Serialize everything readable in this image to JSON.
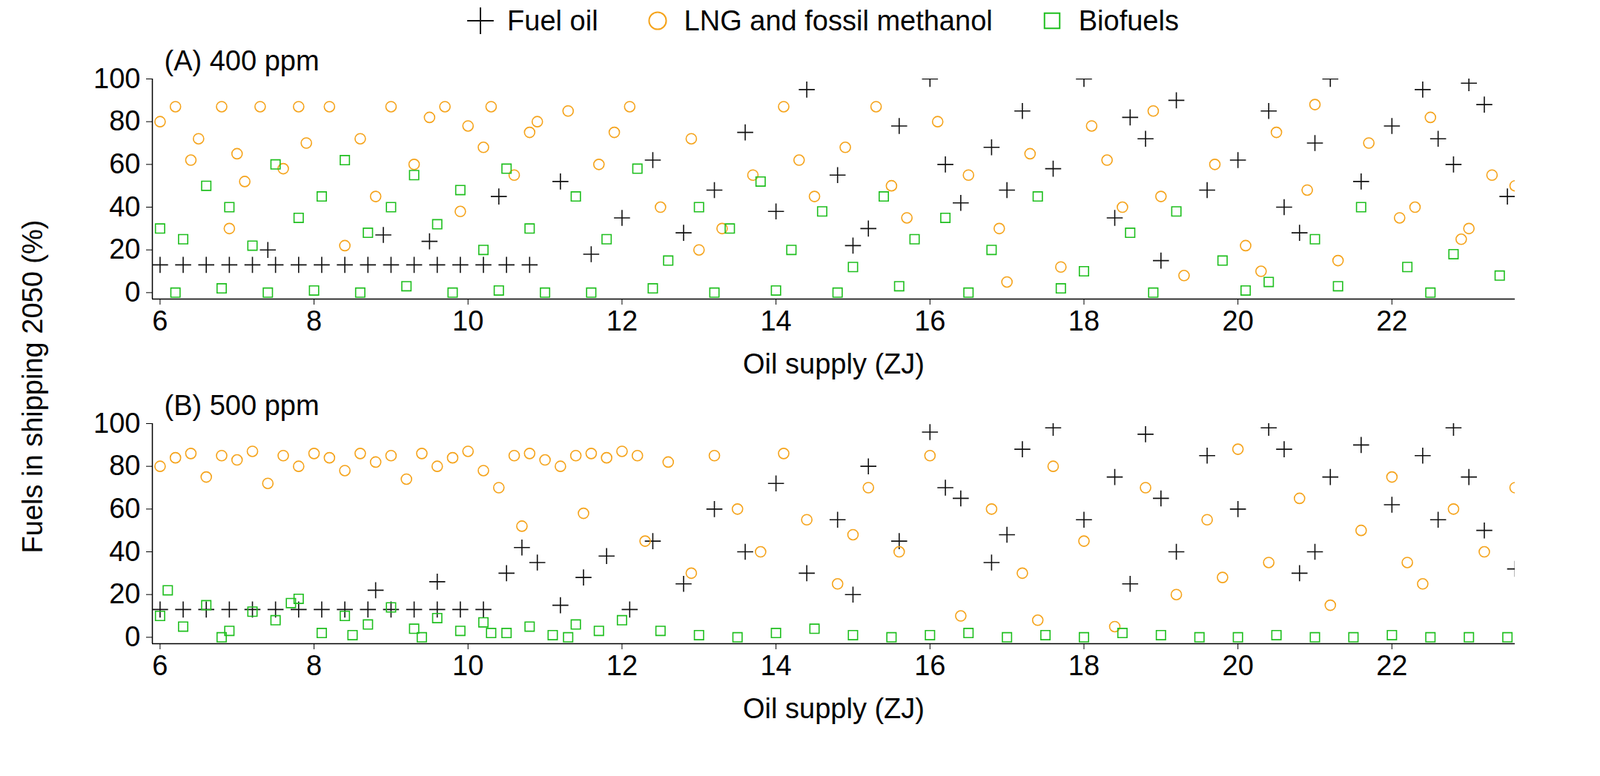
{
  "chart_data": [
    {
      "type": "scatter",
      "title": "(A) 400 ppm",
      "x_label": "Oil supply (ZJ)",
      "y_label": "Fuels in shipping 2050 (%)",
      "xlim": [
        5.9,
        23.6
      ],
      "xticks": [
        6,
        8,
        10,
        12,
        14,
        16,
        18,
        20,
        22
      ],
      "ylim": [
        -3,
        100
      ],
      "yticks": [
        0,
        20,
        40,
        60,
        80,
        100
      ],
      "legend": "top",
      "series": [
        {
          "name": "Fuel oil",
          "color": "#111111",
          "marker": "plus",
          "x": [
            6.0,
            6.3,
            6.6,
            6.9,
            7.2,
            7.5,
            7.8,
            8.1,
            8.4,
            8.7,
            9.0,
            9.3,
            9.6,
            9.9,
            10.2,
            10.5,
            10.8,
            7.4,
            8.9,
            9.5,
            10.4,
            11.2,
            11.6,
            12.0,
            12.4,
            12.8,
            13.2,
            13.6,
            14.0,
            14.4,
            14.8,
            15.2,
            15.6,
            16.0,
            16.4,
            16.8,
            17.2,
            17.6,
            18.0,
            18.4,
            18.8,
            19.2,
            19.6,
            20.0,
            20.4,
            20.8,
            21.2,
            21.6,
            22.0,
            22.4,
            22.8,
            23.2,
            23.5,
            15.0,
            17.0,
            19.0,
            21.0,
            23.0,
            16.2,
            18.6,
            20.6,
            22.6
          ],
          "values": [
            13,
            13,
            13,
            13,
            13,
            13,
            13,
            13,
            13,
            13,
            13,
            13,
            13,
            13,
            13,
            13,
            13,
            20,
            27,
            24,
            45,
            52,
            18,
            35,
            62,
            28,
            48,
            75,
            38,
            95,
            55,
            30,
            78,
            100,
            42,
            68,
            85,
            58,
            100,
            35,
            72,
            90,
            48,
            62,
            85,
            28,
            100,
            52,
            78,
            95,
            60,
            88,
            45,
            22,
            48,
            15,
            70,
            98,
            60,
            82,
            40,
            72
          ]
        },
        {
          "name": "LNG and fossil methanol",
          "color": "#f5a31a",
          "marker": "circle",
          "x": [
            6.0,
            6.2,
            6.5,
            6.8,
            7.0,
            7.3,
            7.6,
            7.8,
            8.2,
            8.6,
            9.0,
            9.3,
            9.7,
            10.0,
            10.3,
            10.6,
            10.9,
            6.4,
            7.1,
            7.9,
            8.8,
            9.5,
            10.2,
            10.8,
            6.9,
            8.4,
            9.9,
            11.3,
            11.7,
            12.1,
            12.5,
            12.9,
            13.3,
            13.7,
            14.1,
            14.5,
            14.9,
            15.3,
            15.7,
            11.9,
            13.0,
            14.3,
            15.5,
            16.1,
            16.5,
            16.9,
            17.3,
            17.7,
            18.1,
            18.5,
            18.9,
            19.3,
            19.7,
            20.1,
            20.5,
            20.9,
            21.3,
            21.7,
            22.1,
            22.5,
            22.9,
            23.3,
            23.6,
            17.0,
            19.0,
            21.0,
            23.0,
            18.3,
            20.3,
            22.3
          ],
          "values": [
            80,
            87,
            72,
            87,
            65,
            87,
            58,
            87,
            87,
            72,
            87,
            60,
            87,
            78,
            87,
            55,
            80,
            62,
            52,
            70,
            45,
            82,
            68,
            75,
            30,
            22,
            38,
            85,
            60,
            87,
            40,
            72,
            30,
            55,
            87,
            45,
            68,
            87,
            35,
            75,
            20,
            62,
            50,
            80,
            55,
            30,
            65,
            12,
            78,
            40,
            85,
            8,
            60,
            22,
            75,
            48,
            15,
            70,
            35,
            82,
            25,
            55,
            50,
            5,
            45,
            88,
            30,
            62,
            10,
            40
          ]
        },
        {
          "name": "Biofuels",
          "color": "#1fbf1f",
          "marker": "square",
          "x": [
            6.0,
            6.3,
            6.6,
            6.9,
            7.2,
            7.5,
            7.8,
            8.1,
            8.4,
            8.7,
            9.0,
            9.3,
            9.6,
            9.9,
            10.2,
            10.5,
            10.8,
            6.2,
            6.8,
            7.4,
            8.0,
            8.6,
            9.2,
            9.8,
            10.4,
            11.0,
            11.4,
            11.8,
            12.2,
            12.6,
            13.0,
            13.4,
            13.8,
            14.2,
            14.6,
            15.0,
            15.4,
            15.8,
            11.6,
            12.4,
            13.2,
            14.0,
            14.8,
            15.6,
            16.2,
            16.8,
            17.4,
            18.0,
            18.6,
            19.2,
            19.8,
            20.4,
            21.0,
            21.6,
            22.2,
            22.8,
            23.4,
            16.5,
            17.7,
            18.9,
            20.1,
            21.3,
            22.5
          ],
          "values": [
            30,
            25,
            50,
            40,
            22,
            60,
            35,
            45,
            62,
            28,
            40,
            55,
            32,
            48,
            20,
            58,
            30,
            0,
            2,
            0,
            1,
            0,
            3,
            0,
            1,
            0,
            45,
            25,
            58,
            15,
            40,
            30,
            52,
            20,
            38,
            12,
            45,
            25,
            0,
            2,
            0,
            1,
            0,
            3,
            35,
            20,
            45,
            10,
            28,
            38,
            15,
            5,
            25,
            40,
            12,
            18,
            8,
            0,
            2,
            0,
            1,
            3,
            0
          ]
        }
      ]
    },
    {
      "type": "scatter",
      "title": "(B) 500 ppm",
      "x_label": "Oil supply (ZJ)",
      "xlim": [
        5.9,
        23.6
      ],
      "xticks": [
        6,
        8,
        10,
        12,
        14,
        16,
        18,
        20,
        22
      ],
      "ylim": [
        -3,
        100
      ],
      "yticks": [
        0,
        20,
        40,
        60,
        80,
        100
      ],
      "series": [
        {
          "name": "Fuel oil",
          "color": "#111111",
          "marker": "plus",
          "x": [
            6.0,
            6.3,
            6.6,
            6.9,
            7.2,
            7.5,
            7.8,
            8.1,
            8.4,
            8.7,
            9.0,
            9.3,
            9.6,
            9.9,
            10.2,
            8.8,
            9.6,
            10.5,
            10.7,
            10.9,
            11.2,
            11.5,
            11.8,
            12.1,
            12.4,
            12.8,
            13.2,
            13.6,
            14.0,
            14.4,
            14.8,
            15.2,
            15.6,
            16.0,
            16.4,
            16.8,
            17.2,
            17.6,
            18.0,
            18.4,
            18.8,
            19.2,
            19.6,
            20.0,
            20.4,
            20.8,
            21.2,
            21.6,
            22.0,
            22.4,
            22.8,
            23.2,
            23.6,
            15.0,
            17.0,
            19.0,
            21.0,
            23.0,
            16.2,
            18.6,
            20.6,
            22.6
          ],
          "values": [
            13,
            13,
            13,
            13,
            13,
            13,
            13,
            13,
            13,
            13,
            13,
            13,
            13,
            13,
            13,
            22,
            26,
            30,
            42,
            35,
            15,
            28,
            38,
            13,
            45,
            25,
            60,
            40,
            72,
            30,
            55,
            80,
            45,
            96,
            65,
            35,
            88,
            98,
            55,
            75,
            95,
            40,
            85,
            60,
            98,
            30,
            75,
            90,
            62,
            85,
            98,
            50,
            32,
            20,
            48,
            65,
            40,
            75,
            70,
            25,
            88,
            55
          ]
        },
        {
          "name": "LNG and fossil methanol",
          "color": "#f5a31a",
          "marker": "circle",
          "x": [
            6.0,
            6.2,
            6.4,
            6.6,
            6.8,
            7.0,
            7.2,
            7.4,
            7.6,
            7.8,
            8.0,
            8.2,
            8.4,
            8.6,
            8.8,
            9.0,
            9.2,
            9.4,
            9.6,
            9.8,
            10.0,
            10.2,
            10.4,
            10.6,
            10.8,
            11.0,
            11.2,
            11.4,
            11.6,
            11.8,
            12.0,
            12.2,
            10.7,
            11.5,
            12.3,
            12.6,
            12.9,
            13.2,
            13.5,
            13.8,
            14.1,
            14.4,
            14.8,
            15.2,
            15.6,
            16.0,
            16.4,
            16.8,
            17.2,
            17.6,
            18.0,
            18.4,
            18.8,
            19.2,
            19.6,
            20.0,
            20.4,
            20.8,
            21.2,
            21.6,
            22.0,
            22.4,
            22.8,
            23.2,
            23.6,
            15.0,
            17.4,
            19.8,
            22.2
          ],
          "values": [
            80,
            84,
            86,
            75,
            85,
            83,
            87,
            72,
            85,
            80,
            86,
            84,
            78,
            86,
            82,
            85,
            74,
            86,
            80,
            84,
            87,
            78,
            70,
            85,
            86,
            83,
            80,
            85,
            86,
            84,
            87,
            85,
            52,
            58,
            45,
            82,
            30,
            85,
            60,
            40,
            86,
            55,
            25,
            70,
            40,
            85,
            10,
            60,
            30,
            80,
            45,
            5,
            70,
            20,
            55,
            88,
            35,
            65,
            15,
            50,
            75,
            25,
            60,
            40,
            70,
            48,
            8,
            28,
            35
          ]
        },
        {
          "name": "Biofuels",
          "color": "#1fbf1f",
          "marker": "square",
          "x": [
            6.0,
            6.3,
            6.6,
            6.9,
            7.2,
            7.5,
            7.8,
            8.1,
            8.4,
            8.7,
            9.0,
            9.3,
            9.6,
            9.9,
            10.2,
            10.5,
            10.8,
            11.1,
            11.4,
            11.7,
            12.0,
            6.1,
            6.8,
            7.7,
            8.5,
            9.4,
            10.3,
            11.3,
            12.5,
            13.0,
            13.5,
            14.0,
            14.5,
            15.0,
            15.5,
            16.0,
            16.5,
            17.0,
            17.5,
            18.0,
            18.5,
            19.0,
            19.5,
            20.0,
            20.5,
            21.0,
            21.5,
            22.0,
            22.5,
            23.0,
            23.5
          ],
          "values": [
            10,
            5,
            15,
            3,
            12,
            8,
            18,
            2,
            10,
            6,
            14,
            4,
            9,
            3,
            7,
            2,
            5,
            1,
            6,
            3,
            8,
            22,
            0,
            16,
            1,
            0,
            2,
            0,
            3,
            1,
            0,
            2,
            4,
            1,
            0,
            1,
            2,
            0,
            1,
            0,
            2,
            1,
            0,
            0,
            1,
            0,
            0,
            1,
            0,
            0,
            0
          ]
        }
      ]
    }
  ]
}
